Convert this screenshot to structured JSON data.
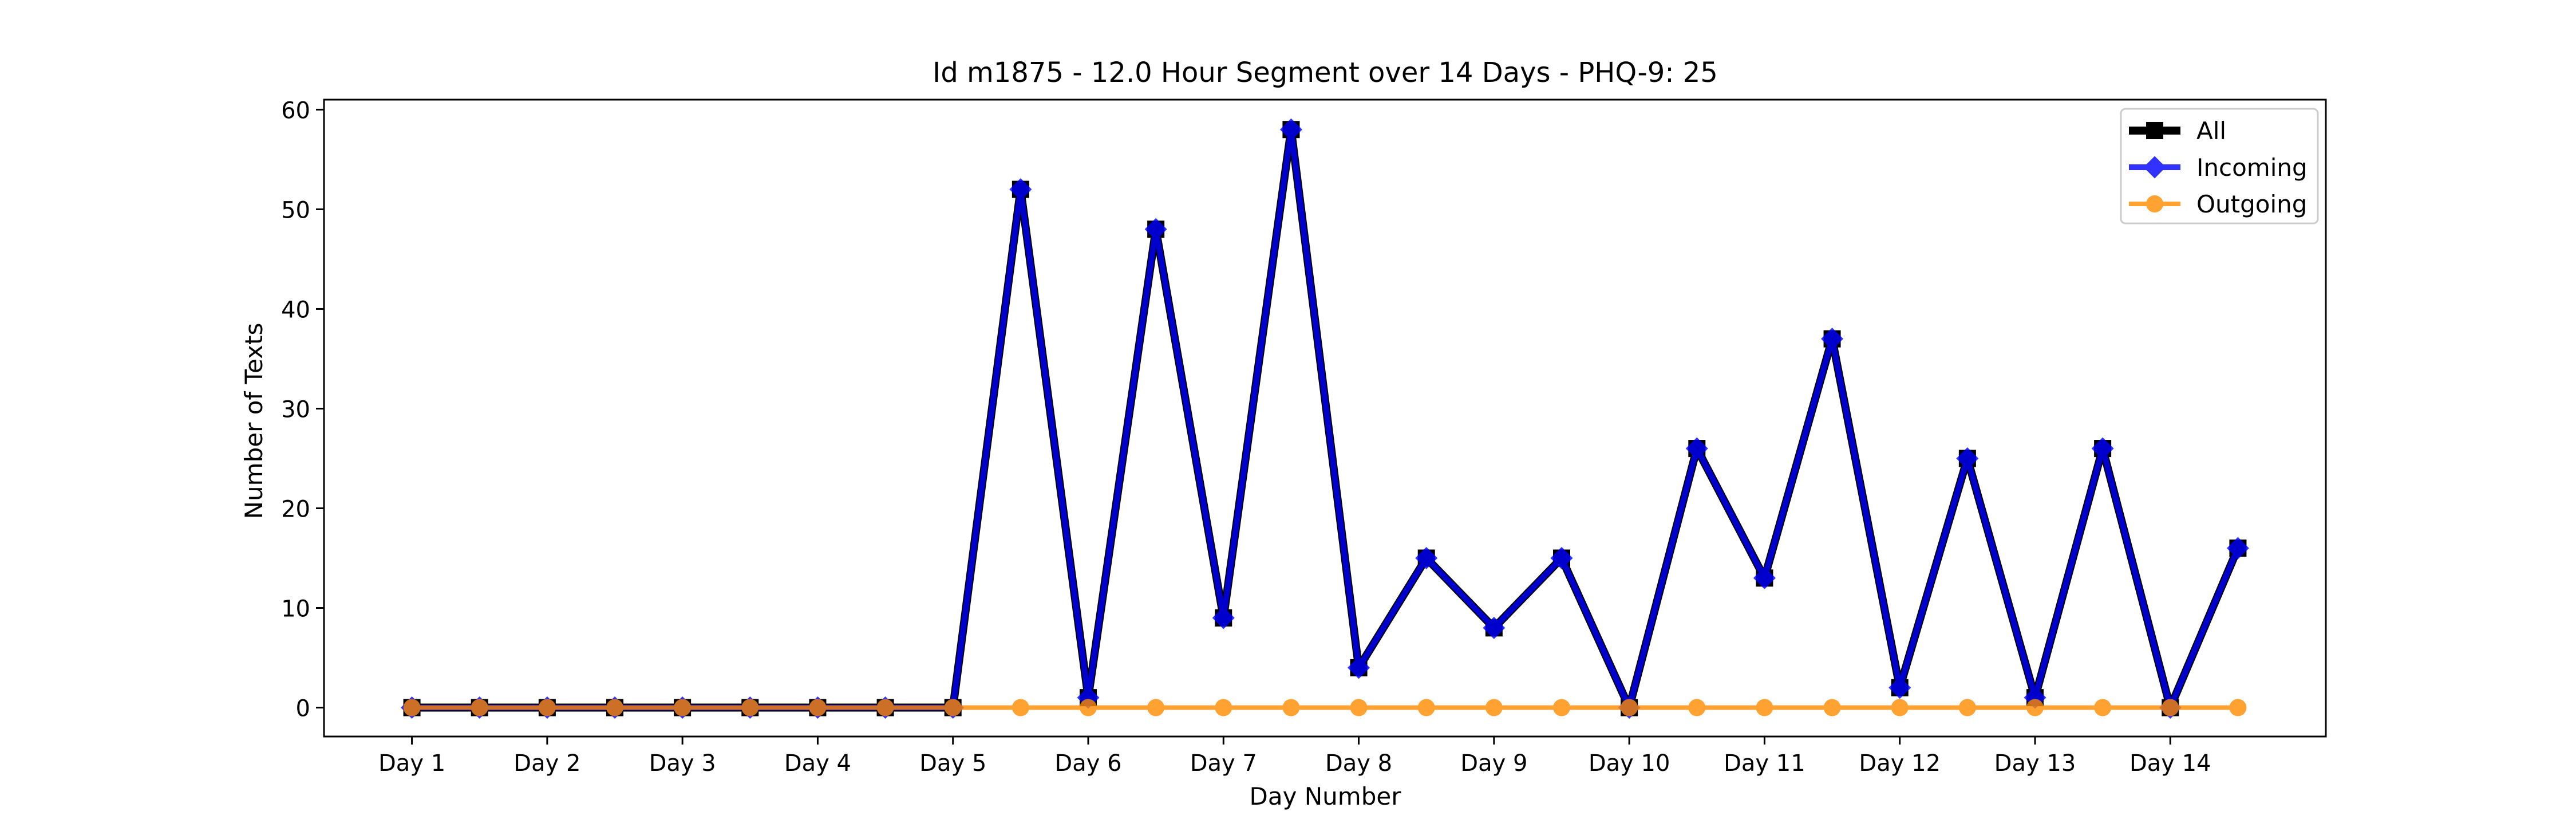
{
  "chart_data": {
    "type": "line",
    "title": "Id m1875 - 12.0 Hour Segment over 14 Days - PHQ-9: 25",
    "xlabel": "Day Number",
    "ylabel": "Number of Texts",
    "x_tick_labels": [
      "Day 1",
      "Day 2",
      "Day 3",
      "Day 4",
      "Day 5",
      "Day 6",
      "Day 7",
      "Day 8",
      "Day 9",
      "Day 10",
      "Day 11",
      "Day 12",
      "Day 13",
      "Day 14"
    ],
    "y_ticks": [
      0,
      10,
      20,
      30,
      40,
      50,
      60
    ],
    "xlim": [
      0.35,
      15.15
    ],
    "ylim": [
      -2.9,
      61
    ],
    "x": [
      1,
      1.5,
      2,
      2.5,
      3,
      3.5,
      4,
      4.5,
      5,
      5.5,
      6,
      6.5,
      7,
      7.5,
      8,
      8.5,
      9,
      9.5,
      10,
      10.5,
      11,
      11.5,
      12,
      12.5,
      13,
      13.5,
      14,
      14.5
    ],
    "series": [
      {
        "name": "All",
        "color": "#000000",
        "marker": "square",
        "values": [
          0,
          0,
          0,
          0,
          0,
          0,
          0,
          0,
          0,
          52,
          1,
          48,
          9,
          58,
          4,
          15,
          8,
          15,
          0,
          26,
          13,
          37,
          2,
          25,
          1,
          26,
          0,
          16
        ]
      },
      {
        "name": "Incoming",
        "color": "#0000ff",
        "marker": "diamond",
        "values": [
          0,
          0,
          0,
          0,
          0,
          0,
          0,
          0,
          0,
          52,
          1,
          48,
          9,
          58,
          4,
          15,
          8,
          15,
          0,
          26,
          13,
          37,
          2,
          25,
          1,
          26,
          0,
          16
        ]
      },
      {
        "name": "Outgoing",
        "color": "#ff8c00",
        "marker": "circle",
        "values": [
          0,
          0,
          0,
          0,
          0,
          0,
          0,
          0,
          0,
          0,
          0,
          0,
          0,
          0,
          0,
          0,
          0,
          0,
          0,
          0,
          0,
          0,
          0,
          0,
          0,
          0,
          0,
          0
        ]
      }
    ],
    "legend_position": "top-right",
    "grid": false
  }
}
